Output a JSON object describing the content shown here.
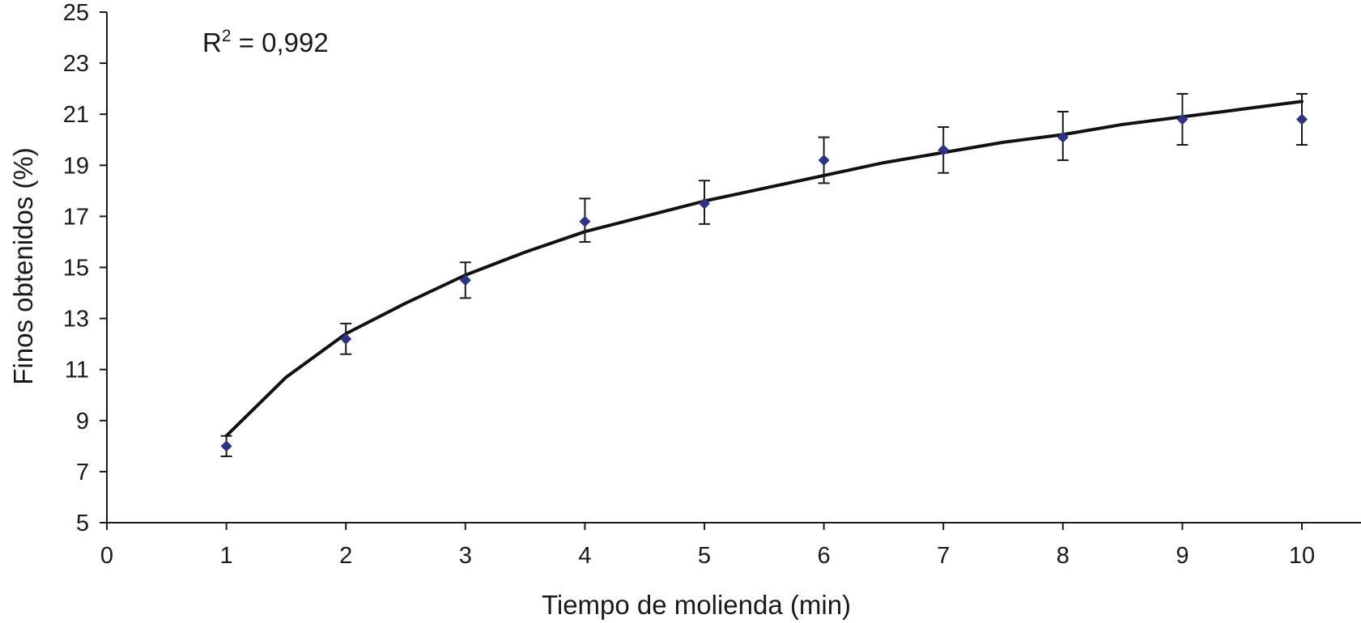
{
  "chart_data": {
    "type": "scatter",
    "title": "",
    "xlabel": "Tiempo de molienda (min)",
    "ylabel": "Finos obtenidos (%)",
    "xlim": [
      0,
      10
    ],
    "ylim": [
      5,
      25
    ],
    "x_ticks": [
      "0",
      "1",
      "2",
      "3",
      "4",
      "5",
      "6",
      "7",
      "8",
      "9",
      "10"
    ],
    "y_ticks": [
      "5",
      "7",
      "9",
      "11",
      "13",
      "15",
      "17",
      "19",
      "21",
      "23",
      "25"
    ],
    "grid": false,
    "legend": "none",
    "annotation": {
      "base": "R",
      "sup": "2",
      "text": " = 0,992"
    },
    "marker_color": "#2e3383",
    "line_color": "#111111",
    "series": [
      {
        "marker": "diamond",
        "x": [
          1,
          2,
          3,
          4,
          5,
          6,
          7,
          8,
          9,
          10
        ],
        "y": [
          8.0,
          12.2,
          14.5,
          16.8,
          17.5,
          19.2,
          19.6,
          20.1,
          20.8,
          20.8
        ],
        "error_low": [
          7.6,
          11.6,
          13.8,
          16.0,
          16.7,
          18.3,
          18.7,
          19.2,
          19.8,
          19.8
        ],
        "error_high": [
          8.4,
          12.8,
          15.2,
          17.7,
          18.4,
          20.1,
          20.5,
          21.1,
          21.8,
          21.8
        ]
      }
    ],
    "fit_curve": {
      "type": "logarithmic",
      "x": [
        1,
        1.5,
        2,
        2.5,
        3,
        3.5,
        4,
        4.5,
        5,
        5.5,
        6,
        6.5,
        7,
        7.5,
        8,
        8.5,
        9,
        9.5,
        10
      ],
      "y": [
        8.4,
        10.7,
        12.4,
        13.6,
        14.7,
        15.6,
        16.4,
        17.0,
        17.6,
        18.1,
        18.6,
        19.1,
        19.5,
        19.9,
        20.2,
        20.6,
        20.9,
        21.2,
        21.5
      ]
    }
  }
}
